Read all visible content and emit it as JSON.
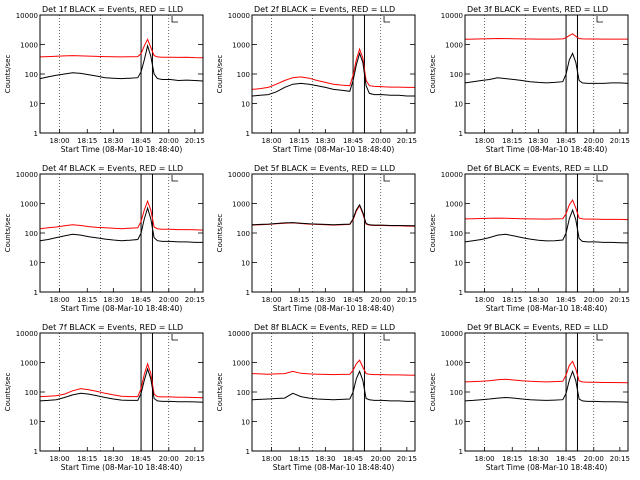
{
  "start_time_label": "Start Time (08-Mar-10 18:48:40)",
  "ylabel": "Counts/sec",
  "x_ticks": [
    "18:00",
    "18:15",
    "18:30",
    "18:45",
    "20:00",
    "20:15"
  ],
  "y_ticks": [
    "1",
    "10",
    "100",
    "1000",
    "10000"
  ],
  "colors": {
    "events": "#000000",
    "lld": "#ff0000"
  },
  "chart_data": [
    {
      "type": "line",
      "title": "Det 1f BLACK = Events, RED = LLD",
      "ylim": [
        1,
        10000
      ],
      "y_scale": "log",
      "x": [
        0.0,
        0.05,
        0.1,
        0.15,
        0.2,
        0.25,
        0.3,
        0.35,
        0.4,
        0.45,
        0.5,
        0.55,
        0.6,
        0.62,
        0.64,
        0.66,
        0.68,
        0.7,
        0.72,
        0.75,
        0.8,
        0.85,
        0.9,
        0.95,
        1.0
      ],
      "series": [
        {
          "name": "Events",
          "color": "#000000",
          "values": [
            70,
            80,
            90,
            100,
            110,
            105,
            95,
            85,
            75,
            72,
            70,
            72,
            75,
            120,
            300,
            900,
            400,
            100,
            70,
            65,
            65,
            60,
            62,
            60,
            58
          ]
        },
        {
          "name": "LLD",
          "color": "#ff0000",
          "values": [
            380,
            390,
            400,
            410,
            420,
            410,
            405,
            395,
            390,
            385,
            380,
            385,
            390,
            500,
            900,
            1500,
            800,
            420,
            380,
            370,
            370,
            365,
            370,
            360,
            355
          ]
        }
      ]
    },
    {
      "type": "line",
      "title": "Det 2f BLACK = Events, RED = LLD",
      "ylim": [
        1,
        10000
      ],
      "y_scale": "log",
      "x": [
        0.0,
        0.05,
        0.1,
        0.15,
        0.2,
        0.25,
        0.3,
        0.35,
        0.4,
        0.45,
        0.5,
        0.55,
        0.6,
        0.62,
        0.64,
        0.66,
        0.68,
        0.7,
        0.72,
        0.75,
        0.8,
        0.85,
        0.9,
        0.95,
        1.0
      ],
      "series": [
        {
          "name": "Events",
          "color": "#000000",
          "values": [
            18,
            19,
            20,
            25,
            35,
            45,
            48,
            45,
            40,
            35,
            30,
            28,
            26,
            60,
            200,
            500,
            250,
            40,
            22,
            20,
            20,
            19,
            19,
            18,
            18
          ]
        },
        {
          "name": "LLD",
          "color": "#ff0000",
          "values": [
            30,
            32,
            35,
            45,
            60,
            75,
            80,
            72,
            60,
            52,
            45,
            42,
            40,
            90,
            300,
            700,
            350,
            60,
            40,
            38,
            37,
            36,
            36,
            35,
            35
          ]
        }
      ]
    },
    {
      "type": "line",
      "title": "Det 3f BLACK = Events, RED = LLD",
      "ylim": [
        1,
        10000
      ],
      "y_scale": "log",
      "x": [
        0.0,
        0.05,
        0.1,
        0.15,
        0.2,
        0.25,
        0.3,
        0.35,
        0.4,
        0.45,
        0.5,
        0.55,
        0.6,
        0.62,
        0.64,
        0.66,
        0.68,
        0.7,
        0.72,
        0.75,
        0.8,
        0.85,
        0.9,
        0.95,
        1.0
      ],
      "series": [
        {
          "name": "Events",
          "color": "#000000",
          "values": [
            50,
            55,
            60,
            65,
            75,
            70,
            65,
            60,
            55,
            52,
            50,
            52,
            55,
            100,
            300,
            500,
            250,
            60,
            50,
            48,
            48,
            48,
            50,
            50,
            48
          ]
        },
        {
          "name": "LLD",
          "color": "#ff0000",
          "values": [
            1500,
            1520,
            1550,
            1570,
            1600,
            1580,
            1560,
            1550,
            1540,
            1530,
            1520,
            1530,
            1550,
            1700,
            2000,
            2300,
            1900,
            1600,
            1550,
            1540,
            1540,
            1530,
            1530,
            1520,
            1520
          ]
        }
      ]
    },
    {
      "type": "line",
      "title": "Det 4f BLACK = Events, RED = LLD",
      "ylim": [
        1,
        10000
      ],
      "y_scale": "log",
      "x": [
        0.0,
        0.05,
        0.1,
        0.15,
        0.2,
        0.25,
        0.3,
        0.35,
        0.4,
        0.45,
        0.5,
        0.55,
        0.6,
        0.62,
        0.64,
        0.66,
        0.68,
        0.7,
        0.72,
        0.75,
        0.8,
        0.85,
        0.9,
        0.95,
        1.0
      ],
      "series": [
        {
          "name": "Events",
          "color": "#000000",
          "values": [
            55,
            60,
            70,
            80,
            90,
            85,
            75,
            68,
            62,
            58,
            55,
            57,
            60,
            100,
            300,
            700,
            300,
            70,
            55,
            52,
            52,
            50,
            50,
            48,
            48
          ]
        },
        {
          "name": "LLD",
          "color": "#ff0000",
          "values": [
            140,
            150,
            160,
            175,
            190,
            180,
            165,
            155,
            150,
            145,
            140,
            145,
            150,
            250,
            600,
            1200,
            600,
            160,
            140,
            135,
            135,
            130,
            130,
            128,
            125
          ]
        }
      ]
    },
    {
      "type": "line",
      "title": "Det 5f BLACK = Events, RED = LLD",
      "ylim": [
        1,
        10000
      ],
      "y_scale": "log",
      "x": [
        0.0,
        0.05,
        0.1,
        0.15,
        0.2,
        0.25,
        0.3,
        0.35,
        0.4,
        0.45,
        0.5,
        0.55,
        0.6,
        0.62,
        0.64,
        0.66,
        0.68,
        0.7,
        0.72,
        0.75,
        0.8,
        0.85,
        0.9,
        0.95,
        1.0
      ],
      "series": [
        {
          "name": "Events",
          "color": "#000000",
          "values": [
            190,
            195,
            200,
            210,
            220,
            225,
            215,
            205,
            200,
            195,
            190,
            195,
            200,
            300,
            600,
            900,
            500,
            210,
            190,
            185,
            185,
            180,
            180,
            178,
            175
          ]
        },
        {
          "name": "LLD",
          "color": "#ff0000",
          "values": [
            185,
            190,
            195,
            205,
            215,
            220,
            210,
            200,
            195,
            190,
            185,
            190,
            195,
            280,
            550,
            850,
            450,
            200,
            185,
            180,
            180,
            175,
            175,
            172,
            170
          ]
        }
      ]
    },
    {
      "type": "line",
      "title": "Det 6f BLACK = Events, RED = LLD",
      "ylim": [
        1,
        10000
      ],
      "y_scale": "log",
      "x": [
        0.0,
        0.05,
        0.1,
        0.15,
        0.2,
        0.25,
        0.3,
        0.35,
        0.4,
        0.45,
        0.5,
        0.55,
        0.6,
        0.62,
        0.64,
        0.66,
        0.68,
        0.7,
        0.72,
        0.75,
        0.8,
        0.85,
        0.9,
        0.95,
        1.0
      ],
      "series": [
        {
          "name": "Events",
          "color": "#000000",
          "values": [
            50,
            55,
            60,
            70,
            85,
            90,
            80,
            70,
            62,
            57,
            54,
            55,
            58,
            100,
            300,
            600,
            280,
            65,
            52,
            50,
            50,
            48,
            48,
            47,
            46
          ]
        },
        {
          "name": "LLD",
          "color": "#ff0000",
          "values": [
            300,
            305,
            310,
            315,
            320,
            315,
            310,
            305,
            300,
            298,
            295,
            300,
            305,
            450,
            900,
            1300,
            700,
            320,
            300,
            295,
            295,
            290,
            290,
            288,
            285
          ]
        }
      ]
    },
    {
      "type": "line",
      "title": "Det 7f BLACK = Events, RED = LLD",
      "ylim": [
        1,
        10000
      ],
      "y_scale": "log",
      "x": [
        0.0,
        0.05,
        0.1,
        0.15,
        0.2,
        0.25,
        0.3,
        0.35,
        0.4,
        0.45,
        0.5,
        0.55,
        0.6,
        0.62,
        0.64,
        0.66,
        0.68,
        0.7,
        0.72,
        0.75,
        0.8,
        0.85,
        0.9,
        0.95,
        1.0
      ],
      "series": [
        {
          "name": "Events",
          "color": "#000000",
          "values": [
            50,
            52,
            55,
            65,
            80,
            90,
            85,
            75,
            65,
            58,
            53,
            52,
            52,
            90,
            250,
            600,
            280,
            60,
            50,
            48,
            48,
            47,
            47,
            46,
            45
          ]
        },
        {
          "name": "LLD",
          "color": "#ff0000",
          "values": [
            70,
            72,
            75,
            85,
            110,
            130,
            120,
            105,
            90,
            80,
            72,
            70,
            70,
            130,
            400,
            900,
            420,
            85,
            70,
            68,
            68,
            66,
            66,
            65,
            64
          ]
        }
      ]
    },
    {
      "type": "line",
      "title": "Det 8f BLACK = Events, RED = LLD",
      "ylim": [
        1,
        10000
      ],
      "y_scale": "log",
      "x": [
        0.0,
        0.05,
        0.1,
        0.15,
        0.2,
        0.25,
        0.3,
        0.35,
        0.4,
        0.45,
        0.5,
        0.55,
        0.6,
        0.62,
        0.64,
        0.66,
        0.68,
        0.7,
        0.72,
        0.75,
        0.8,
        0.85,
        0.9,
        0.95,
        1.0
      ],
      "series": [
        {
          "name": "Events",
          "color": "#000000",
          "values": [
            55,
            56,
            58,
            60,
            62,
            90,
            70,
            62,
            58,
            56,
            55,
            56,
            58,
            100,
            280,
            500,
            250,
            60,
            55,
            52,
            52,
            50,
            50,
            48,
            48
          ]
        },
        {
          "name": "LLD",
          "color": "#ff0000",
          "values": [
            420,
            410,
            400,
            410,
            420,
            500,
            430,
            410,
            400,
            395,
            390,
            395,
            400,
            550,
            900,
            1200,
            700,
            420,
            400,
            390,
            390,
            380,
            380,
            375,
            370
          ]
        }
      ]
    },
    {
      "type": "line",
      "title": "Det 9f BLACK = Events, RED = LLD",
      "ylim": [
        1,
        10000
      ],
      "y_scale": "log",
      "x": [
        0.0,
        0.05,
        0.1,
        0.15,
        0.2,
        0.25,
        0.3,
        0.35,
        0.4,
        0.45,
        0.5,
        0.55,
        0.6,
        0.62,
        0.64,
        0.66,
        0.68,
        0.7,
        0.72,
        0.75,
        0.8,
        0.85,
        0.9,
        0.95,
        1.0
      ],
      "series": [
        {
          "name": "Events",
          "color": "#000000",
          "values": [
            50,
            52,
            55,
            58,
            62,
            65,
            62,
            58,
            55,
            53,
            52,
            53,
            55,
            90,
            250,
            500,
            240,
            58,
            50,
            48,
            48,
            47,
            47,
            46,
            45
          ]
        },
        {
          "name": "LLD",
          "color": "#ff0000",
          "values": [
            220,
            225,
            230,
            240,
            260,
            270,
            255,
            240,
            230,
            225,
            220,
            225,
            230,
            380,
            800,
            1100,
            600,
            240,
            220,
            215,
            215,
            210,
            210,
            208,
            205
          ]
        }
      ]
    }
  ]
}
